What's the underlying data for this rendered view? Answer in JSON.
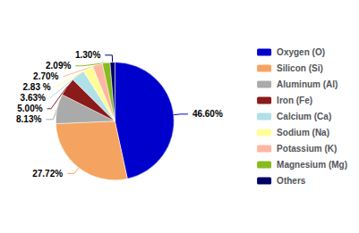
{
  "chart_data": {
    "type": "pie",
    "categories": [
      "Oxygen (O)",
      "Silicon (Si)",
      "Aluminum (Al)",
      "Iron (Fe)",
      "Calcium (Ca)",
      "Sodium (Na)",
      "Potassium (K)",
      "Magnesium (Mg)",
      "Others"
    ],
    "values": [
      46.6,
      27.72,
      8.13,
      5.0,
      3.63,
      2.83,
      2.7,
      2.09,
      1.3
    ],
    "value_labels": [
      "46.60%",
      "27.72%",
      "8.13%",
      "5.00%",
      "3.63%",
      "2.83 %",
      "2.70%",
      "2.09%",
      "1.30%"
    ],
    "colors": [
      "#0000CC",
      "#F4A460",
      "#AAAAAA",
      "#8B1A1A",
      "#B0E0E8",
      "#FFFF99",
      "#FFB6A0",
      "#88BB22",
      "#000066"
    ],
    "data_labels": true,
    "legend": "right"
  }
}
